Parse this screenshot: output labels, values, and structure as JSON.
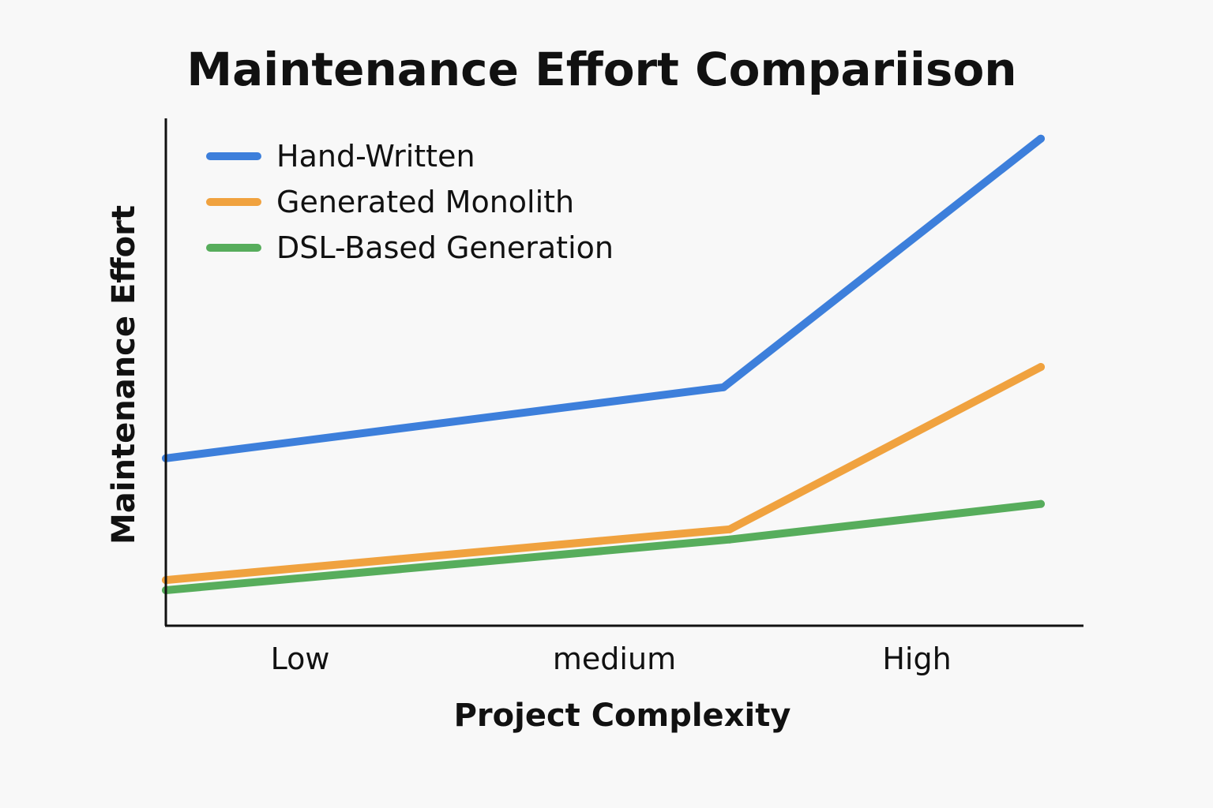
{
  "chart_data": {
    "type": "line",
    "title": "Maintenance Effort Compariison",
    "xlabel": "Project Complexity",
    "ylabel": "Maintenance Effort",
    "categories": [
      "Low",
      "medium",
      "High"
    ],
    "x": [
      0,
      1.35,
      2.38
    ],
    "xlim": [
      0,
      2.38
    ],
    "ylim": [
      0,
      100
    ],
    "grid": false,
    "legend_position": "top-left",
    "series": [
      {
        "name": "Hand-Written",
        "color": "#3d7fdb",
        "points": [
          [
            0,
            33
          ],
          [
            1.81,
            47
          ],
          [
            2.84,
            96
          ]
        ]
      },
      {
        "name": "Generated Monolith",
        "color": "#f0a23f",
        "points": [
          [
            0,
            9
          ],
          [
            1.83,
            19
          ],
          [
            2.84,
            51
          ]
        ]
      },
      {
        "name": "DSL-Based Generation",
        "color": "#57ad5c",
        "points": [
          [
            0,
            7
          ],
          [
            1.83,
            17
          ],
          [
            2.84,
            24
          ]
        ]
      }
    ]
  }
}
